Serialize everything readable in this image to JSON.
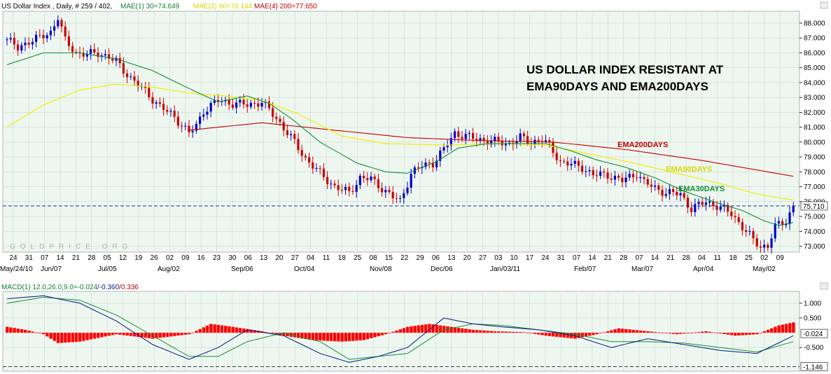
{
  "header": {
    "main": "US Dollar Index , Daily, # 259 / 402,",
    "ema30": "MAE(1) 30=74.649",
    "ema90": "MAE(2) 90=76.144",
    "ema200": "MAE(4) 200=77.650",
    "macd": "MACD(1) 12.0,26.0,9.0=",
    "macd_v1": "-0.024",
    "macd_sep": "/",
    "macd_v2": "-0.360",
    "macd_v3": "/0.336"
  },
  "annotation": {
    "line1": "US DOLLAR INDEX RESISTANT AT",
    "line2": "EMA90DAYS AND EMA200DAYS"
  },
  "watermark": "GOLDPRICE.ORG",
  "colors": {
    "up": "#0000cc",
    "down": "#cc0000",
    "ema30": "#109030",
    "ema90": "#f0f000",
    "ema200": "#c00000",
    "macd": "#001a80",
    "signal": "#109030",
    "hist": "#ff0000",
    "bg": "#eef6f0"
  },
  "chart_data": [
    {
      "type": "candlestick",
      "title": "US Dollar Index , Daily, # 259 / 402,",
      "ylim": [
        72.6,
        88.8
      ],
      "y_ticks": [
        "73.000",
        "74.000",
        "75.000",
        "76.000",
        "77.000",
        "78.000",
        "79.000",
        "80.000",
        "81.000",
        "82.000",
        "83.000",
        "84.000",
        "85.000",
        "86.000",
        "87.000",
        "88.000"
      ],
      "last_value_label": "75.710",
      "last_value": 75.71,
      "day_ticks": [
        "24",
        "31",
        "07",
        "14",
        "21",
        "28",
        "05",
        "12",
        "19",
        "26",
        "02",
        "09",
        "16",
        "23",
        "30",
        "06",
        "13",
        "20",
        "27",
        "04",
        "11",
        "18",
        "25",
        "08",
        "15",
        "22",
        "29",
        "06",
        "13",
        "20",
        "27",
        "03",
        "10",
        "17",
        "24",
        "31",
        "07",
        "14",
        "21",
        "28",
        "07",
        "14",
        "21",
        "28",
        "04",
        "11",
        "18",
        "25",
        "02",
        "09"
      ],
      "month_ticks": [
        "May/24/10",
        "Jun/07",
        "Jul/05",
        "Aug/02",
        "Sep/06",
        "Oct/04",
        "Nov/08",
        "Dec/06",
        "Jan/03/11",
        "Feb/07",
        "Mar/07",
        "Apr/04",
        "May/02"
      ],
      "series_labels": {
        "ema200": "EMA200DAYS",
        "ema90": "EMA90DAYS",
        "ema30": "EMA30DAYS"
      },
      "close_path": [
        [
          0,
          86.9
        ],
        [
          3,
          86.3
        ],
        [
          6,
          86.8
        ],
        [
          9,
          87.0
        ],
        [
          12,
          87.4
        ],
        [
          14,
          88.4
        ],
        [
          16,
          86.8
        ],
        [
          19,
          86.0
        ],
        [
          22,
          85.9
        ],
        [
          25,
          86.0
        ],
        [
          28,
          85.7
        ],
        [
          30,
          85.4
        ],
        [
          34,
          84.3
        ],
        [
          38,
          83.4
        ],
        [
          42,
          82.4
        ],
        [
          46,
          81.7
        ],
        [
          50,
          80.6
        ],
        [
          52,
          81.1
        ],
        [
          54,
          82.1
        ],
        [
          58,
          82.8
        ],
        [
          62,
          82.6
        ],
        [
          66,
          82.5
        ],
        [
          70,
          82.7
        ],
        [
          74,
          81.6
        ],
        [
          78,
          80.3
        ],
        [
          82,
          78.9
        ],
        [
          86,
          77.9
        ],
        [
          90,
          77.0
        ],
        [
          94,
          76.6
        ],
        [
          97,
          77.6
        ],
        [
          100,
          77.5
        ],
        [
          103,
          76.9
        ],
        [
          106,
          76.3
        ],
        [
          108,
          76.0
        ],
        [
          111,
          77.9
        ],
        [
          114,
          78.4
        ],
        [
          117,
          78.6
        ],
        [
          120,
          79.5
        ],
        [
          123,
          80.6
        ],
        [
          126,
          80.4
        ],
        [
          129,
          80.2
        ],
        [
          132,
          80.1
        ],
        [
          135,
          80.0
        ],
        [
          138,
          79.9
        ],
        [
          141,
          80.3
        ],
        [
          144,
          80.0
        ],
        [
          147,
          80.2
        ],
        [
          149,
          79.7
        ],
        [
          152,
          78.7
        ],
        [
          155,
          78.5
        ],
        [
          158,
          78.3
        ],
        [
          161,
          77.8
        ],
        [
          165,
          77.8
        ],
        [
          169,
          77.4
        ],
        [
          173,
          77.9
        ],
        [
          175,
          77.3
        ],
        [
          178,
          76.9
        ],
        [
          181,
          76.6
        ],
        [
          185,
          76.5
        ],
        [
          188,
          75.5
        ],
        [
          192,
          76.0
        ],
        [
          195,
          75.7
        ],
        [
          199,
          75.2
        ],
        [
          202,
          74.3
        ],
        [
          205,
          73.4
        ],
        [
          207,
          73.0
        ],
        [
          209,
          73.0
        ],
        [
          211,
          74.3
        ],
        [
          214,
          74.7
        ],
        [
          216,
          75.7
        ]
      ],
      "ema30_path": [
        [
          0,
          85.2
        ],
        [
          10,
          86.0
        ],
        [
          20,
          86.0
        ],
        [
          30,
          85.6
        ],
        [
          40,
          84.8
        ],
        [
          50,
          83.6
        ],
        [
          58,
          82.7
        ],
        [
          66,
          83.1
        ],
        [
          72,
          82.6
        ],
        [
          78,
          81.6
        ],
        [
          86,
          80.0
        ],
        [
          96,
          78.6
        ],
        [
          104,
          78.0
        ],
        [
          110,
          77.9
        ],
        [
          118,
          78.7
        ],
        [
          124,
          79.6
        ],
        [
          132,
          79.9
        ],
        [
          140,
          79.9
        ],
        [
          148,
          79.9
        ],
        [
          155,
          79.4
        ],
        [
          162,
          78.8
        ],
        [
          170,
          78.3
        ],
        [
          178,
          77.6
        ],
        [
          186,
          76.7
        ],
        [
          194,
          76.0
        ],
        [
          202,
          75.4
        ],
        [
          208,
          74.7
        ],
        [
          212,
          74.4
        ],
        [
          216,
          74.6
        ]
      ],
      "ema90_path": [
        [
          0,
          81.0
        ],
        [
          10,
          82.5
        ],
        [
          20,
          83.5
        ],
        [
          30,
          83.9
        ],
        [
          40,
          83.7
        ],
        [
          50,
          83.3
        ],
        [
          60,
          83.1
        ],
        [
          70,
          82.8
        ],
        [
          80,
          81.9
        ],
        [
          92,
          80.4
        ],
        [
          104,
          79.9
        ],
        [
          120,
          79.8
        ],
        [
          136,
          79.9
        ],
        [
          148,
          79.8
        ],
        [
          160,
          79.2
        ],
        [
          172,
          78.6
        ],
        [
          184,
          77.9
        ],
        [
          196,
          77.2
        ],
        [
          206,
          76.5
        ],
        [
          216,
          76.1
        ]
      ],
      "ema200_path": [
        [
          50,
          80.8
        ],
        [
          70,
          81.3
        ],
        [
          90,
          80.8
        ],
        [
          110,
          80.3
        ],
        [
          130,
          80.1
        ],
        [
          150,
          80.0
        ],
        [
          170,
          79.5
        ],
        [
          190,
          78.8
        ],
        [
          216,
          77.7
        ]
      ]
    },
    {
      "type": "macd",
      "ylim": [
        -1.3,
        1.4
      ],
      "y_ticks": [
        "1.000",
        "0.500",
        "-0.500"
      ],
      "last_value_label": "-0.024",
      "last_value": -0.024,
      "min_value_label": "-1.146",
      "min_value": -1.146,
      "macd_path": [
        [
          0,
          1.15
        ],
        [
          10,
          1.25
        ],
        [
          20,
          1.0
        ],
        [
          30,
          0.4
        ],
        [
          40,
          -0.4
        ],
        [
          50,
          -0.9
        ],
        [
          58,
          -0.5
        ],
        [
          66,
          0.1
        ],
        [
          76,
          -0.1
        ],
        [
          86,
          -0.7
        ],
        [
          94,
          -1.0
        ],
        [
          102,
          -0.8
        ],
        [
          110,
          -0.5
        ],
        [
          120,
          0.5
        ],
        [
          128,
          0.3
        ],
        [
          136,
          0.2
        ],
        [
          146,
          0.1
        ],
        [
          156,
          -0.1
        ],
        [
          166,
          -0.5
        ],
        [
          176,
          -0.2
        ],
        [
          186,
          -0.4
        ],
        [
          196,
          -0.6
        ],
        [
          206,
          -0.7
        ],
        [
          216,
          -0.1
        ]
      ],
      "signal_path": [
        [
          0,
          1.0
        ],
        [
          10,
          1.2
        ],
        [
          20,
          1.1
        ],
        [
          30,
          0.6
        ],
        [
          40,
          -0.1
        ],
        [
          50,
          -0.8
        ],
        [
          58,
          -0.8
        ],
        [
          66,
          -0.3
        ],
        [
          76,
          0.0
        ],
        [
          86,
          -0.3
        ],
        [
          94,
          -0.9
        ],
        [
          102,
          -0.8
        ],
        [
          110,
          -0.7
        ],
        [
          120,
          0.1
        ],
        [
          128,
          0.3
        ],
        [
          136,
          0.25
        ],
        [
          146,
          0.1
        ],
        [
          156,
          -0.05
        ],
        [
          166,
          -0.3
        ],
        [
          176,
          -0.3
        ],
        [
          186,
          -0.35
        ],
        [
          196,
          -0.5
        ],
        [
          206,
          -0.65
        ],
        [
          216,
          -0.3
        ]
      ],
      "hist_path": [
        [
          0,
          0.2
        ],
        [
          5,
          0.1
        ],
        [
          10,
          -0.05
        ],
        [
          14,
          -0.35
        ],
        [
          20,
          -0.3
        ],
        [
          26,
          -0.15
        ],
        [
          30,
          -0.05
        ],
        [
          40,
          -0.2
        ],
        [
          50,
          -0.05
        ],
        [
          56,
          0.3
        ],
        [
          62,
          0.2
        ],
        [
          70,
          0.05
        ],
        [
          76,
          -0.1
        ],
        [
          84,
          -0.25
        ],
        [
          92,
          -0.3
        ],
        [
          98,
          -0.25
        ],
        [
          104,
          -0.05
        ],
        [
          110,
          0.2
        ],
        [
          116,
          0.3
        ],
        [
          122,
          0.2
        ],
        [
          128,
          0.1
        ],
        [
          134,
          0.05
        ],
        [
          142,
          0.02
        ],
        [
          148,
          -0.1
        ],
        [
          156,
          -0.2
        ],
        [
          162,
          -0.05
        ],
        [
          168,
          0.15
        ],
        [
          176,
          0.05
        ],
        [
          184,
          -0.05
        ],
        [
          192,
          0.05
        ],
        [
          200,
          -0.1
        ],
        [
          206,
          -0.05
        ],
        [
          212,
          0.25
        ],
        [
          216,
          0.35
        ]
      ]
    }
  ]
}
